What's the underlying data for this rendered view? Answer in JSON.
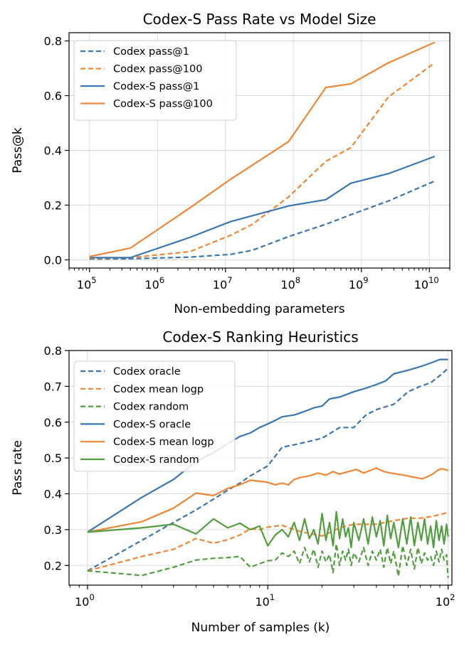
{
  "colors": {
    "blue": "#3a76af",
    "orange": "#ef8636",
    "green": "#519e3e"
  },
  "chart_data": [
    {
      "type": "line",
      "title": "Codex-S Pass Rate vs Model Size",
      "xlabel": "Non-embedding parameters",
      "ylabel": "Pass@k",
      "xscale": "log",
      "xlim": [
        50000,
        20000000000
      ],
      "ylim": [
        -0.03,
        0.83
      ],
      "xticks": [
        {
          "value": 100000,
          "base": "10",
          "exp": "5"
        },
        {
          "value": 1000000,
          "base": "10",
          "exp": "6"
        },
        {
          "value": 10000000,
          "base": "10",
          "exp": "7"
        },
        {
          "value": 100000000,
          "base": "10",
          "exp": "8"
        },
        {
          "value": 1000000000,
          "base": "10",
          "exp": "9"
        },
        {
          "value": 10000000000,
          "base": "10",
          "exp": "10"
        }
      ],
      "yticks": [
        {
          "value": 0.0,
          "label": "0.0"
        },
        {
          "value": 0.2,
          "label": "0.2"
        },
        {
          "value": 0.4,
          "label": "0.4"
        },
        {
          "value": 0.6,
          "label": "0.6"
        },
        {
          "value": 0.8,
          "label": "0.8"
        }
      ],
      "grid": true,
      "legend": "top-left",
      "series": [
        {
          "name": "Codex pass@1",
          "color": "blue",
          "dash": true,
          "x": [
            100000,
            400000,
            3000000,
            12000000,
            25000000,
            85000000,
            300000000,
            700000000,
            2500000000,
            12000000000
          ],
          "y": [
            0.003,
            0.004,
            0.01,
            0.02,
            0.035,
            0.085,
            0.13,
            0.165,
            0.215,
            0.288
          ]
        },
        {
          "name": "Codex pass@100",
          "color": "orange",
          "dash": true,
          "x": [
            100000,
            400000,
            3000000,
            12000000,
            25000000,
            85000000,
            300000000,
            700000000,
            2500000000,
            12000000000
          ],
          "y": [
            0.005,
            0.008,
            0.03,
            0.09,
            0.13,
            0.23,
            0.36,
            0.41,
            0.595,
            0.72
          ]
        },
        {
          "name": "Codex-S pass@1",
          "color": "blue",
          "dash": false,
          "x": [
            100000,
            400000,
            3000000,
            12000000,
            85000000,
            300000000,
            700000000,
            2500000000,
            12000000000
          ],
          "y": [
            0.008,
            0.008,
            0.082,
            0.14,
            0.197,
            0.22,
            0.28,
            0.315,
            0.378
          ]
        },
        {
          "name": "Codex-S pass@100",
          "color": "orange",
          "dash": false,
          "x": [
            100000,
            400000,
            3000000,
            12000000,
            85000000,
            300000000,
            700000000,
            2500000000,
            12000000000
          ],
          "y": [
            0.012,
            0.043,
            0.19,
            0.295,
            0.432,
            0.63,
            0.643,
            0.72,
            0.795
          ]
        }
      ]
    },
    {
      "type": "line",
      "title": "Codex-S Ranking Heuristics",
      "xlabel": "Number of samples (k)",
      "ylabel": "Pass rate",
      "xscale": "log",
      "xlim": [
        0.79,
        105
      ],
      "ylim": [
        0.145,
        0.8
      ],
      "xticks": [
        {
          "value": 1,
          "base": "10",
          "exp": "0"
        },
        {
          "value": 10,
          "base": "10",
          "exp": "1"
        },
        {
          "value": 100,
          "base": "10",
          "exp": "2"
        }
      ],
      "yticks": [
        {
          "value": 0.2,
          "label": "0.2"
        },
        {
          "value": 0.3,
          "label": "0.3"
        },
        {
          "value": 0.4,
          "label": "0.4"
        },
        {
          "value": 0.5,
          "label": "0.5"
        },
        {
          "value": 0.6,
          "label": "0.6"
        },
        {
          "value": 0.7,
          "label": "0.7"
        },
        {
          "value": 0.8,
          "label": "0.8"
        }
      ],
      "grid": true,
      "legend": "top-left",
      "series": [
        {
          "name": "Codex oracle",
          "color": "blue",
          "dash": true,
          "x": [
            1,
            2,
            3,
            4,
            5,
            6,
            7,
            8,
            9,
            10,
            12,
            15,
            20,
            25,
            30,
            35,
            40,
            50,
            60,
            70,
            80,
            90,
            100
          ],
          "y": [
            0.185,
            0.27,
            0.32,
            0.355,
            0.385,
            0.41,
            0.43,
            0.45,
            0.465,
            0.478,
            0.53,
            0.54,
            0.555,
            0.585,
            0.585,
            0.62,
            0.635,
            0.65,
            0.685,
            0.7,
            0.71,
            0.73,
            0.75
          ]
        },
        {
          "name": "Codex mean logp",
          "color": "orange",
          "dash": true,
          "x": [
            1,
            2,
            3,
            4,
            5,
            6,
            7,
            8,
            9,
            10,
            12,
            15,
            20,
            25,
            30,
            40,
            50,
            60,
            70,
            80,
            90,
            100
          ],
          "y": [
            0.185,
            0.225,
            0.245,
            0.275,
            0.262,
            0.272,
            0.285,
            0.302,
            0.3,
            0.307,
            0.312,
            0.295,
            0.282,
            0.305,
            0.315,
            0.315,
            0.325,
            0.332,
            0.332,
            0.336,
            0.342,
            0.348
          ]
        },
        {
          "name": "Codex random",
          "color": "green",
          "dash": true,
          "x": [
            1,
            2,
            3,
            4,
            5,
            6,
            7,
            8,
            9,
            10,
            11,
            12,
            13,
            14,
            15,
            16,
            17,
            18,
            19,
            20,
            21,
            22,
            23,
            24,
            25,
            26,
            27,
            28,
            29,
            30,
            32,
            34,
            36,
            38,
            40,
            42,
            44,
            46,
            48,
            50,
            53,
            56,
            59,
            62,
            65,
            68,
            71,
            74,
            77,
            80,
            83,
            86,
            89,
            92,
            95,
            98,
            100
          ],
          "y": [
            0.185,
            0.172,
            0.195,
            0.215,
            0.22,
            0.222,
            0.225,
            0.195,
            0.205,
            0.213,
            0.215,
            0.235,
            0.225,
            0.24,
            0.205,
            0.25,
            0.21,
            0.245,
            0.195,
            0.24,
            0.21,
            0.23,
            0.18,
            0.26,
            0.2,
            0.24,
            0.215,
            0.245,
            0.2,
            0.235,
            0.21,
            0.25,
            0.2,
            0.24,
            0.215,
            0.245,
            0.195,
            0.25,
            0.205,
            0.24,
            0.17,
            0.255,
            0.2,
            0.245,
            0.19,
            0.25,
            0.205,
            0.235,
            0.215,
            0.225,
            0.2,
            0.24,
            0.21,
            0.245,
            0.215,
            0.23,
            0.165
          ]
        },
        {
          "name": "Codex-S oracle",
          "color": "blue",
          "dash": false,
          "x": [
            1,
            2,
            3,
            4,
            5,
            6,
            7,
            8,
            9,
            10,
            11,
            12,
            14,
            16,
            18,
            20,
            22,
            25,
            30,
            35,
            40,
            45,
            50,
            60,
            70,
            80,
            90,
            100
          ],
          "y": [
            0.293,
            0.39,
            0.44,
            0.49,
            0.515,
            0.54,
            0.56,
            0.57,
            0.585,
            0.595,
            0.605,
            0.615,
            0.62,
            0.63,
            0.64,
            0.645,
            0.665,
            0.67,
            0.685,
            0.695,
            0.705,
            0.715,
            0.735,
            0.745,
            0.755,
            0.765,
            0.775,
            0.775
          ]
        },
        {
          "name": "Codex-S mean logp",
          "color": "orange",
          "dash": false,
          "x": [
            1,
            2,
            3,
            4,
            5,
            6,
            7,
            8,
            9,
            10,
            11,
            12,
            13,
            14,
            15,
            17,
            19,
            21,
            23,
            25,
            28,
            31,
            34,
            37,
            40,
            44,
            48,
            52,
            57,
            62,
            67,
            72,
            77,
            82,
            87,
            92,
            96,
            100
          ],
          "y": [
            0.293,
            0.322,
            0.36,
            0.402,
            0.395,
            0.415,
            0.425,
            0.438,
            0.435,
            0.432,
            0.425,
            0.43,
            0.425,
            0.44,
            0.445,
            0.45,
            0.458,
            0.452,
            0.462,
            0.455,
            0.462,
            0.468,
            0.458,
            0.465,
            0.472,
            0.462,
            0.458,
            0.455,
            0.452,
            0.448,
            0.445,
            0.442,
            0.448,
            0.455,
            0.465,
            0.47,
            0.468,
            0.465
          ]
        },
        {
          "name": "Codex-S random",
          "color": "green",
          "dash": false,
          "x": [
            1,
            2,
            3,
            4,
            5,
            6,
            7,
            8,
            9,
            10,
            11,
            12,
            13,
            14,
            15,
            16,
            17,
            18,
            19,
            20,
            21,
            22,
            23,
            24,
            25,
            26,
            27,
            28,
            29,
            30,
            32,
            34,
            36,
            38,
            40,
            42,
            44,
            46,
            48,
            50,
            53,
            56,
            59,
            62,
            65,
            68,
            71,
            74,
            77,
            80,
            83,
            86,
            89,
            92,
            95,
            98,
            100
          ],
          "y": [
            0.293,
            0.305,
            0.315,
            0.288,
            0.33,
            0.305,
            0.318,
            0.3,
            0.31,
            0.255,
            0.285,
            0.3,
            0.28,
            0.32,
            0.27,
            0.33,
            0.275,
            0.3,
            0.26,
            0.345,
            0.27,
            0.32,
            0.255,
            0.35,
            0.275,
            0.33,
            0.28,
            0.305,
            0.25,
            0.32,
            0.27,
            0.33,
            0.26,
            0.335,
            0.28,
            0.325,
            0.255,
            0.34,
            0.275,
            0.32,
            0.25,
            0.33,
            0.26,
            0.335,
            0.255,
            0.32,
            0.27,
            0.33,
            0.26,
            0.31,
            0.25,
            0.325,
            0.27,
            0.31,
            0.26,
            0.315,
            0.28
          ]
        }
      ]
    }
  ]
}
